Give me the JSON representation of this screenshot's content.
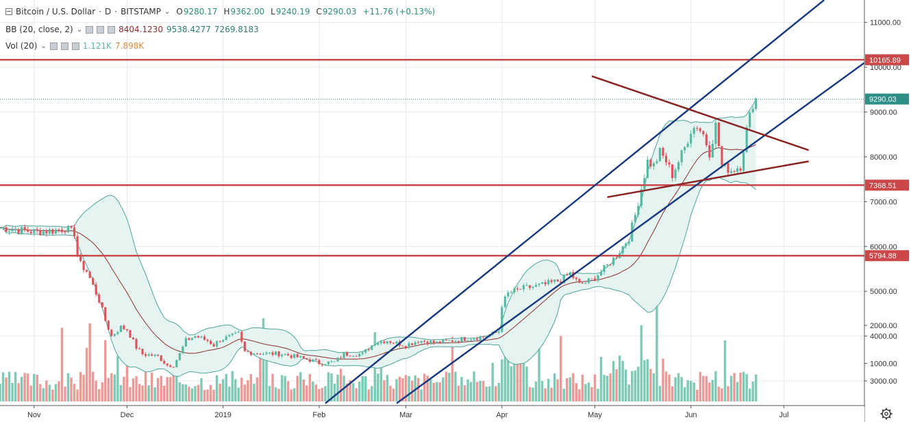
{
  "header": {
    "symbol": "Bitcoin / U.S. Dollar",
    "interval": "D",
    "exchange": "BITSTAMP",
    "o_label": "O",
    "o_value": "9280.17",
    "h_label": "H",
    "h_value": "9362.00",
    "l_label": "L",
    "l_value": "9240.19",
    "c_label": "C",
    "c_value": "9290.03",
    "change": "+11.76 (+0.13%)"
  },
  "bb": {
    "label": "BB (20, close, 2)",
    "basis": "8404.1230",
    "upper": "9538.4277",
    "lower": "7269.8183"
  },
  "vol": {
    "label": "Vol (20)",
    "v1": "1.121K",
    "v2": "7.898K"
  },
  "colors": {
    "up": "#53b9a2",
    "down": "#e0525b",
    "bb_fill": "#e6f4f1",
    "bb_band": "#4ea59a",
    "basis": "#8c2d2d",
    "channel": "#1b3b80",
    "level": "#cc4848",
    "triangle": "#8b2323",
    "price_line": "#2d8f86",
    "vol_up": "#7fcab7",
    "vol_down": "#ec9a97"
  },
  "chart_data": {
    "type": "candlestick",
    "title": "Bitcoin / U.S. Dollar · D · BITSTAMP",
    "x_labels": [
      "Nov",
      "Dec",
      "2019",
      "Feb",
      "Mar",
      "Apr",
      "May",
      "Jun",
      "Jul"
    ],
    "x_label_days": [
      0,
      30,
      61,
      92,
      120,
      151,
      181,
      212,
      242
    ],
    "y_ticks": [
      "3000.00",
      "4000.00",
      "5000.00",
      "6000.00",
      "7000.00",
      "8000.00",
      "9000.00",
      "10000.00",
      "11000.00"
    ],
    "y_tick_values": [
      3000,
      4000,
      5000,
      6000,
      7000,
      8000,
      9000,
      10000,
      11000
    ],
    "ylim": [
      2450,
      11500
    ],
    "vol_ticks": [
      "1000.00",
      "2000.00"
    ],
    "vol_tick_values": [
      1000,
      2000
    ],
    "vol_max": 2700,
    "x_range_days": [
      -11,
      268
    ],
    "last_day": 233,
    "price_anchors": [
      [
        -11,
        6420
      ],
      [
        0,
        6330
      ],
      [
        6,
        6350
      ],
      [
        10,
        6400
      ],
      [
        13,
        6300
      ],
      [
        14,
        5800
      ],
      [
        15,
        5600
      ],
      [
        17,
        5450
      ],
      [
        21,
        4800
      ],
      [
        23,
        4350
      ],
      [
        25,
        4000
      ],
      [
        28,
        4200
      ],
      [
        30,
        4150
      ],
      [
        33,
        3750
      ],
      [
        35,
        3600
      ],
      [
        40,
        3550
      ],
      [
        43,
        3350
      ],
      [
        45,
        3350
      ],
      [
        47,
        3600
      ],
      [
        49,
        3900
      ],
      [
        52,
        4000
      ],
      [
        56,
        3900
      ],
      [
        58,
        3800
      ],
      [
        60,
        3920
      ],
      [
        64,
        4000
      ],
      [
        66,
        4050
      ],
      [
        68,
        3650
      ],
      [
        72,
        3620
      ],
      [
        80,
        3600
      ],
      [
        85,
        3530
      ],
      [
        90,
        3450
      ],
      [
        92,
        3400
      ],
      [
        97,
        3420
      ],
      [
        100,
        3600
      ],
      [
        106,
        3600
      ],
      [
        110,
        3860
      ],
      [
        114,
        3900
      ],
      [
        116,
        3860
      ],
      [
        120,
        3800
      ],
      [
        124,
        3900
      ],
      [
        130,
        3850
      ],
      [
        140,
        3950
      ],
      [
        146,
        4000
      ],
      [
        150,
        4100
      ],
      [
        151,
        4700
      ],
      [
        153,
        4950
      ],
      [
        157,
        5050
      ],
      [
        165,
        5150
      ],
      [
        170,
        5250
      ],
      [
        173,
        5400
      ],
      [
        176,
        5150
      ],
      [
        180,
        5250
      ],
      [
        184,
        5500
      ],
      [
        188,
        5800
      ],
      [
        192,
        6200
      ],
      [
        194,
        6700
      ],
      [
        196,
        7300
      ],
      [
        198,
        7900
      ],
      [
        200,
        7800
      ],
      [
        202,
        8100
      ],
      [
        204,
        7900
      ],
      [
        206,
        7600
      ],
      [
        208,
        7900
      ],
      [
        210,
        8200
      ],
      [
        212,
        8600
      ],
      [
        214,
        8700
      ],
      [
        216,
        8500
      ],
      [
        218,
        8100
      ],
      [
        220,
        8700
      ],
      [
        222,
        7800
      ],
      [
        225,
        7700
      ],
      [
        228,
        7800
      ],
      [
        230,
        8600
      ],
      [
        232,
        9200
      ],
      [
        233,
        9290
      ]
    ],
    "horizontal_levels": [
      {
        "value": 10165.89,
        "label": "10165.89"
      },
      {
        "value": 7368.51,
        "label": "7368.51"
      },
      {
        "value": 5794.88,
        "label": "5794.88"
      }
    ],
    "current_price": {
      "value": 9290.03,
      "label": "9290.03"
    },
    "channel_lines": [
      {
        "from": [
          94,
          2500
        ],
        "to": [
          255,
          11500
        ]
      },
      {
        "from": [
          117,
          2500
        ],
        "to": [
          268,
          10100
        ]
      }
    ],
    "triangle_lines": [
      {
        "from": [
          180,
          9800
        ],
        "to": [
          250,
          8150
        ]
      },
      {
        "from": [
          185,
          7100
        ],
        "to": [
          250,
          7900
        ]
      }
    ]
  }
}
